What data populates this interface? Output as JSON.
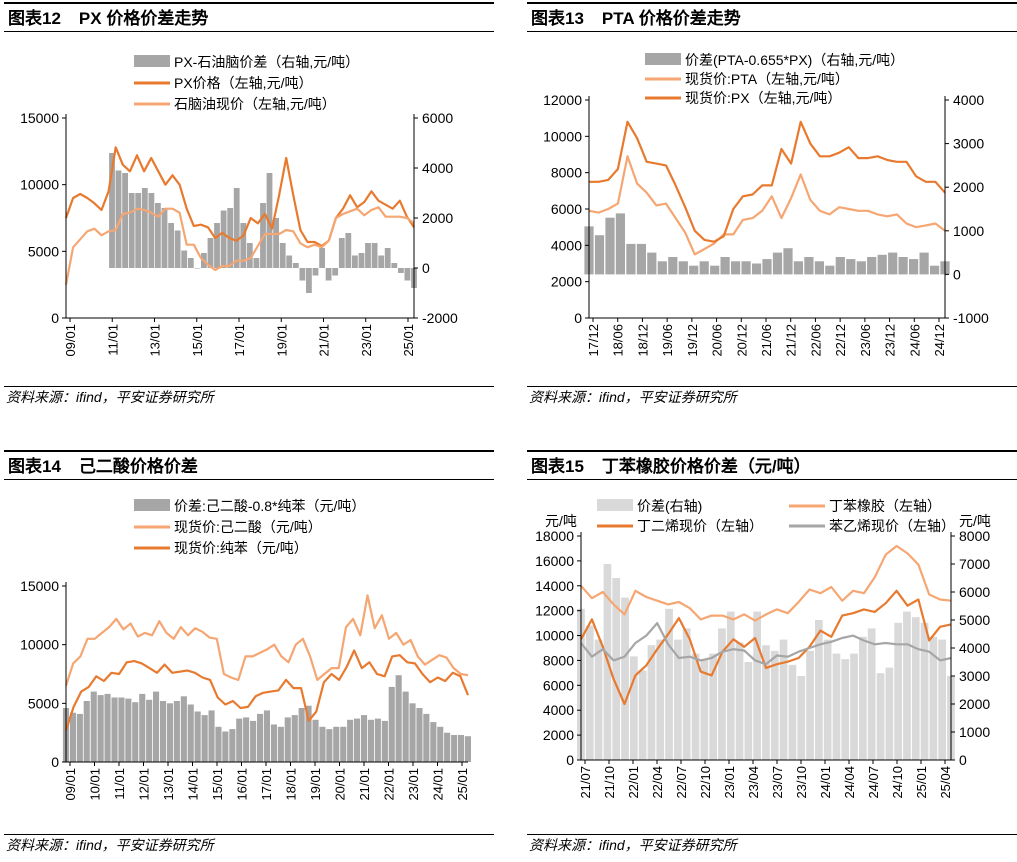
{
  "panels": [
    {
      "title_num": "图表12",
      "title_text": "PX 价格价差走势",
      "source": "资料来源：ifind，平安证券研究所",
      "chart_data": {
        "type": "line+area",
        "left_axis": {
          "min": 0,
          "max": 15000,
          "ticks": [
            0,
            5000,
            10000,
            15000
          ],
          "labels": [
            "0",
            "5000",
            "10000",
            "15000"
          ]
        },
        "right_axis": {
          "min": -2000,
          "max": 6000,
          "ticks": [
            -2000,
            0,
            2000,
            4000,
            6000
          ],
          "labels": [
            "-2000",
            "0",
            "2000",
            "4000",
            "6000"
          ]
        },
        "x_labels": [
          "09/01",
          "11/01",
          "13/01",
          "15/01",
          "17/01",
          "19/01",
          "21/01",
          "23/01",
          "25/01"
        ],
        "x_count": 66,
        "series": [
          {
            "name": "PX-石油脑价差（右轴,元/吨）",
            "kind": "area",
            "axis": "right",
            "color": "#a6a6a6",
            "values": [
              null,
              null,
              null,
              null,
              null,
              null,
              null,
              4600,
              3900,
              3800,
              3000,
              3000,
              3200,
              3000,
              2600,
              2400,
              1800,
              1500,
              700,
              400,
              0,
              600,
              1200,
              1800,
              2300,
              2400,
              3200,
              1800,
              1000,
              400,
              2600,
              3800,
              2000,
              1000,
              500,
              200,
              -500,
              -1000,
              -300,
              800,
              -500,
              -300,
              1200,
              1400,
              500,
              600,
              1000,
              1000,
              500,
              800,
              200,
              -200,
              -500,
              -800
            ]
          },
          {
            "name": "PX价格（左轴,元/吨）",
            "kind": "line",
            "axis": "left",
            "color": "#e87a2f",
            "values": [
              7500,
              9000,
              9300,
              9000,
              8600,
              8100,
              9500,
              12800,
              11500,
              11000,
              12200,
              11000,
              12000,
              11000,
              10000,
              10700,
              10000,
              8200,
              6900,
              7000,
              6800,
              6000,
              6400,
              6000,
              5800,
              6200,
              7500,
              7100,
              7800,
              6700,
              9200,
              12000,
              9200,
              6600,
              5700,
              5700,
              5400,
              5800,
              7500,
              8200,
              9200,
              8300,
              8700,
              9500,
              8800,
              8500,
              8200,
              8800,
              7600,
              6800
            ]
          },
          {
            "name": "石脑油现价（左轴,元/吨）",
            "kind": "line",
            "axis": "left",
            "color": "#f5a672",
            "values": [
              2500,
              5300,
              5900,
              6500,
              6700,
              6200,
              6500,
              6600,
              7800,
              7900,
              8200,
              8100,
              7900,
              7600,
              8200,
              8200,
              7900,
              5500,
              5500,
              4500,
              4000,
              3600,
              3900,
              3900,
              4300,
              4300,
              4500,
              5400,
              6300,
              6300,
              6300,
              6600,
              6500,
              5600,
              5300,
              5500,
              5300,
              5800,
              7500,
              7800,
              8000,
              8200,
              7700,
              8100,
              8300,
              7600,
              7600,
              7600,
              7500,
              7100
            ]
          }
        ]
      }
    },
    {
      "title_num": "图表13",
      "title_text": "PTA 价格价差走势",
      "source": "资料来源：ifind，平安证券研究所",
      "chart_data": {
        "type": "line+area",
        "left_axis": {
          "min": 0,
          "max": 12000,
          "ticks": [
            0,
            2000,
            4000,
            6000,
            8000,
            10000,
            12000
          ],
          "labels": [
            "0",
            "2000",
            "4000",
            "6000",
            "8000",
            "10000",
            "12000"
          ]
        },
        "right_axis": {
          "min": -1000,
          "max": 4000,
          "ticks": [
            -1000,
            0,
            1000,
            2000,
            3000,
            4000
          ],
          "labels": [
            "-1000",
            "0",
            "1000",
            "2000",
            "3000",
            "4000"
          ]
        },
        "x_labels": [
          "17/12",
          "18/06",
          "18/12",
          "19/06",
          "19/12",
          "20/06",
          "20/12",
          "21/06",
          "21/12",
          "22/06",
          "22/12",
          "23/06",
          "23/12",
          "24/06",
          "24/12"
        ],
        "x_count": 15,
        "series": [
          {
            "name": "价差(PTA-0.655*PX)（右轴,元/吨）",
            "kind": "area",
            "axis": "right",
            "color": "#a6a6a6",
            "values": [
              1100,
              900,
              1300,
              1400,
              700,
              700,
              500,
              300,
              400,
              300,
              200,
              300,
              200,
              400,
              300,
              300,
              250,
              350,
              500,
              600,
              300,
              400,
              300,
              200,
              400,
              350,
              300,
              400,
              450,
              500,
              400,
              350,
              500,
              200,
              300
            ]
          },
          {
            "name": "现货价:PTA（左轴,元/吨）",
            "kind": "line",
            "axis": "left",
            "color": "#f5a672",
            "values": [
              5900,
              5800,
              6000,
              6300,
              8900,
              7400,
              6900,
              6200,
              6300,
              5500,
              4700,
              3500,
              3800,
              4100,
              4600,
              4600,
              5400,
              5500,
              5900,
              6700,
              5500,
              6600,
              7900,
              6500,
              5900,
              5700,
              6100,
              6000,
              5900,
              5900,
              5700,
              5600,
              5700,
              5200,
              5000,
              5100,
              5200,
              4800
            ]
          },
          {
            "name": "现货价:PX（左轴,元/吨）",
            "kind": "line",
            "axis": "left",
            "color": "#e87a2f",
            "values": [
              7500,
              7500,
              7600,
              8200,
              10800,
              9900,
              8600,
              8500,
              8400,
              7300,
              6100,
              4800,
              4300,
              4200,
              4500,
              6000,
              6700,
              6800,
              7300,
              7300,
              9300,
              8500,
              10800,
              9600,
              8900,
              8900,
              9100,
              9400,
              8800,
              8800,
              8900,
              8700,
              8600,
              8600,
              7800,
              7500,
              7500,
              6900
            ]
          }
        ]
      }
    },
    {
      "title_num": "图表14",
      "title_text": "己二酸价格价差",
      "source": "资料来源：ifind，平安证券研究所",
      "chart_data": {
        "type": "line+area",
        "left_axis": {
          "min": 0,
          "max": 15000,
          "ticks": [
            0,
            5000,
            10000,
            15000
          ],
          "labels": [
            "0",
            "5000",
            "10000",
            "15000"
          ]
        },
        "x_labels": [
          "09/01",
          "10/01",
          "11/01",
          "12/01",
          "13/01",
          "14/01",
          "15/01",
          "16/01",
          "17/01",
          "18/01",
          "19/01",
          "20/01",
          "21/01",
          "22/01",
          "23/01",
          "24/01",
          "25/01"
        ],
        "x_count": 17,
        "series": [
          {
            "name": "价差:己二酸-0.8*纯苯（元/吨）",
            "kind": "area",
            "axis": "left",
            "color": "#a6a6a6",
            "values": [
              4600,
              4200,
              4100,
              5200,
              6000,
              5700,
              5800,
              5500,
              5500,
              5400,
              5100,
              5800,
              5300,
              6000,
              5200,
              5000,
              5200,
              5600,
              4900,
              4300,
              4000,
              4400,
              3000,
              2600,
              2800,
              3700,
              3800,
              3500,
              4100,
              4400,
              3200,
              3000,
              3800,
              4000,
              4600,
              4800,
              3600,
              3000,
              2800,
              3000,
              3000,
              3600,
              3700,
              4000,
              3600,
              3700,
              3500,
              6400,
              7400,
              6000,
              5000,
              4600,
              4100,
              3400,
              3000,
              2500,
              2300,
              2300,
              2200
            ]
          },
          {
            "name": "现货价:己二酸（元/吨）",
            "kind": "line",
            "axis": "left",
            "color": "#f5a672",
            "values": [
              6500,
              8400,
              9000,
              10500,
              10500,
              11000,
              11500,
              12200,
              11300,
              11800,
              10700,
              11000,
              10800,
              12000,
              11000,
              10500,
              11500,
              10800,
              11400,
              11100,
              10600,
              10500,
              7500,
              7200,
              7000,
              9000,
              9000,
              9300,
              9600,
              10000,
              9000,
              8500,
              10000,
              10500,
              9000,
              7000,
              7500,
              8000,
              8000,
              11500,
              12200,
              10800,
              14200,
              11400,
              12500,
              10500,
              11000,
              10000,
              10400,
              9000,
              8300,
              8700,
              9100,
              8900,
              8000,
              7500,
              7400
            ]
          },
          {
            "name": "现货价:纯苯（元/吨）",
            "kind": "line",
            "axis": "left",
            "color": "#e87a2f",
            "values": [
              2700,
              4700,
              6000,
              6400,
              7300,
              6900,
              7600,
              7500,
              8500,
              8600,
              8400,
              8000,
              7600,
              8300,
              7600,
              7700,
              7800,
              7600,
              7200,
              7000,
              5500,
              4900,
              5200,
              4600,
              4700,
              5600,
              5900,
              6000,
              6100,
              7000,
              6300,
              6300,
              3500,
              4300,
              6800,
              7500,
              7000,
              8100,
              9500,
              8000,
              8500,
              7500,
              7300,
              9000,
              9100,
              8500,
              8400,
              7500,
              6800,
              7200,
              6900,
              7600,
              7300,
              5700
            ]
          }
        ]
      }
    },
    {
      "title_num": "图表15",
      "title_text": "丁苯橡胶价格价差（元/吨）",
      "source": "资料来源：ifind，平安证券研究所",
      "chart_data": {
        "type": "line+area",
        "left_unit": "元/吨",
        "right_unit": "元/吨",
        "left_axis": {
          "min": 0,
          "max": 18000,
          "ticks": [
            0,
            2000,
            4000,
            6000,
            8000,
            10000,
            12000,
            14000,
            16000,
            18000
          ],
          "labels": [
            "0",
            "2000",
            "4000",
            "6000",
            "8000",
            "10000",
            "12000",
            "14000",
            "16000",
            "18000"
          ]
        },
        "right_axis": {
          "min": 0,
          "max": 8000,
          "ticks": [
            0,
            1000,
            2000,
            3000,
            4000,
            5000,
            6000,
            7000,
            8000
          ],
          "labels": [
            "0",
            "1000",
            "2000",
            "3000",
            "4000",
            "5000",
            "6000",
            "7000",
            "8000"
          ]
        },
        "x_labels": [
          "21/07",
          "21/10",
          "22/01",
          "22/04",
          "22/07",
          "22/10",
          "23/01",
          "23/04",
          "23/07",
          "23/10",
          "24/01",
          "24/04",
          "24/07",
          "24/10",
          "25/01",
          "25/04"
        ],
        "x_count": 16,
        "series": [
          {
            "name": "价差(右轴)",
            "kind": "area",
            "axis": "right",
            "color": "#d9d9d9",
            "values": [
              5400,
              4800,
              4300,
              7000,
              6500,
              5800,
              3700,
              3200,
              4100,
              4300,
              5400,
              4300,
              4700,
              3800,
              3600,
              3800,
              4700,
              5300,
              4200,
              3500,
              5300,
              4100,
              3900,
              4300,
              3400,
              3000,
              3900,
              5000,
              4300,
              3800,
              3600,
              3800,
              4400,
              4700,
              3100,
              3300,
              4900,
              5300,
              5100,
              4900,
              4400,
              4300,
              3000
            ]
          },
          {
            "name": "丁苯橡胶（左轴）",
            "kind": "line",
            "axis": "left",
            "color": "#f5a672",
            "values": [
              14000,
              13000,
              13500,
              12500,
              11700,
              13600,
              13100,
              12800,
              12500,
              12700,
              12200,
              11300,
              11600,
              11600,
              11300,
              11700,
              11200,
              11700,
              12100,
              11800,
              12700,
              13700,
              13400,
              13900,
              12800,
              13600,
              13400,
              14700,
              16500,
              17200,
              16600,
              15700,
              13300,
              12900,
              12800
            ]
          },
          {
            "name": "丁二烯现价（左轴）",
            "kind": "line",
            "axis": "left",
            "color": "#e87a2f",
            "values": [
              9700,
              11300,
              9100,
              6500,
              4500,
              6800,
              7600,
              8900,
              10100,
              11400,
              9700,
              7100,
              6800,
              8700,
              9700,
              9100,
              9800,
              7400,
              7700,
              7900,
              8200,
              9100,
              10400,
              9900,
              11600,
              11800,
              12100,
              11900,
              12600,
              13600,
              12400,
              12900,
              9600,
              10700,
              10900
            ]
          },
          {
            "name": "苯乙烯现价（左轴）",
            "kind": "line",
            "axis": "left",
            "color": "#a6a6a6",
            "values": [
              9400,
              8300,
              8900,
              8000,
              8300,
              9400,
              10000,
              11000,
              9300,
              8200,
              8300,
              8000,
              8200,
              8700,
              8900,
              8800,
              8000,
              7700,
              8400,
              8300,
              8700,
              9000,
              9300,
              9500,
              9800,
              10000,
              9600,
              9300,
              9400,
              9300,
              9300,
              8900,
              8700,
              8000,
              8200
            ]
          }
        ]
      }
    }
  ]
}
